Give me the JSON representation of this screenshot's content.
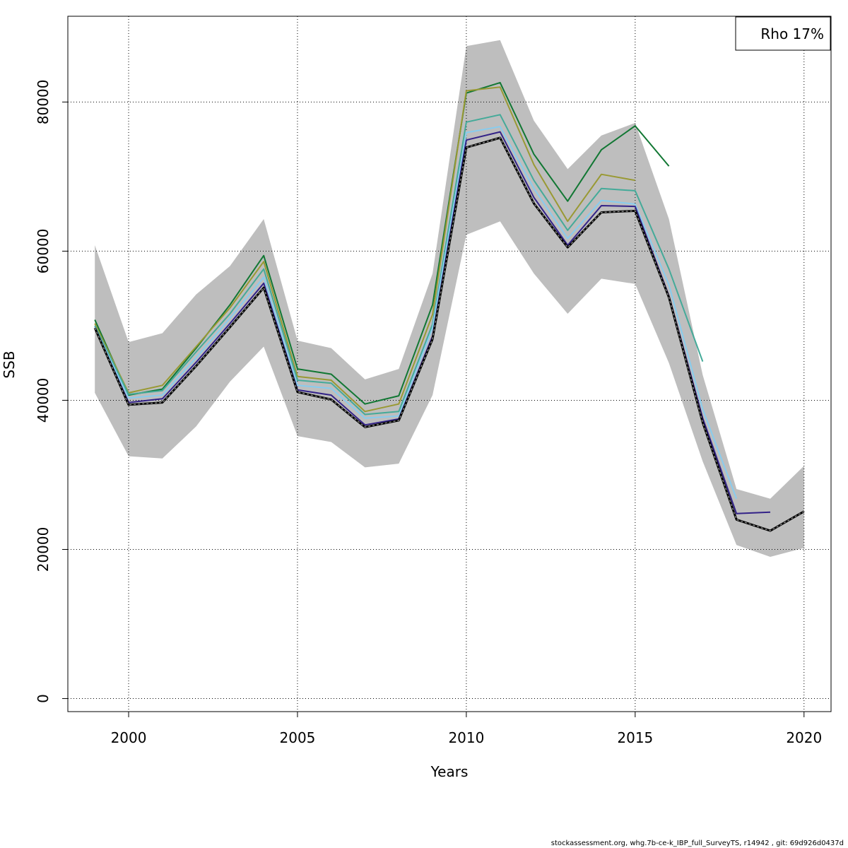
{
  "chart_data": {
    "type": "line",
    "title": "",
    "xlabel": "Years",
    "ylabel": "SSB",
    "xlim": [
      1998.2,
      2020.8
    ],
    "ylim": [
      -1750,
      91500
    ],
    "x_ticks": [
      2000,
      2005,
      2010,
      2015,
      2020
    ],
    "y_ticks": [
      0,
      20000,
      40000,
      60000,
      80000
    ],
    "x_tick_labels": [
      "2000",
      "2005",
      "2010",
      "2015",
      "2020"
    ],
    "y_tick_labels": [
      "0",
      "20000",
      "40000",
      "60000",
      "80000"
    ],
    "grid": true,
    "legend": {
      "position": "top-right",
      "text": "Rho 17%"
    },
    "band": {
      "color": "#bebebe",
      "years": [
        1999,
        2000,
        2001,
        2002,
        2003,
        2004,
        2005,
        2006,
        2007,
        2008,
        2009,
        2010,
        2011,
        2012,
        2013,
        2014,
        2015,
        2016,
        2017,
        2018,
        2019,
        2020
      ],
      "lower": [
        41000,
        32500,
        32200,
        36500,
        42500,
        47200,
        35200,
        34400,
        31000,
        31500,
        40700,
        62200,
        64000,
        57000,
        51600,
        56300,
        55600,
        45000,
        31800,
        20600,
        19000,
        20200
      ],
      "upper": [
        60800,
        47800,
        49000,
        54200,
        58000,
        64300,
        48000,
        47000,
        42800,
        44200,
        57000,
        87500,
        88300,
        77500,
        71000,
        75500,
        77200,
        64300,
        43400,
        28100,
        26800,
        31200
      ]
    },
    "series": [
      {
        "color": "#117733",
        "years": [
          1999,
          2000,
          2001,
          2002,
          2003,
          2004,
          2005,
          2006,
          2007,
          2008,
          2009,
          2010,
          2011,
          2012,
          2013,
          2014,
          2015,
          2016
        ],
        "values": [
          50800,
          40700,
          41500,
          47000,
          52800,
          59400,
          44200,
          43500,
          39500,
          40600,
          52800,
          81200,
          82600,
          73000,
          66700,
          73600,
          76800,
          71400
        ]
      },
      {
        "color": "#999933",
        "years": [
          1999,
          2000,
          2001,
          2002,
          2003,
          2004,
          2005,
          2006,
          2007,
          2008,
          2009,
          2010,
          2011,
          2012,
          2013,
          2014,
          2015
        ],
        "values": [
          50300,
          41000,
          42000,
          47200,
          52400,
          58600,
          43200,
          42700,
          38500,
          39500,
          51500,
          81500,
          82000,
          71600,
          64000,
          70300,
          69500
        ]
      },
      {
        "color": "#44AA99",
        "years": [
          1999,
          2000,
          2001,
          2002,
          2003,
          2004,
          2005,
          2006,
          2007,
          2008,
          2009,
          2010,
          2011,
          2012,
          2013,
          2014,
          2015,
          2016,
          2017
        ],
        "values": [
          50000,
          40800,
          41300,
          46500,
          51600,
          57600,
          42700,
          42300,
          38100,
          38500,
          50200,
          77300,
          78300,
          69500,
          62800,
          68400,
          68100,
          57600,
          45200
        ]
      },
      {
        "color": "#88CCEE",
        "years": [
          1999,
          2000,
          2001,
          2002,
          2003,
          2004,
          2005,
          2006,
          2007,
          2008,
          2009,
          2010,
          2011,
          2012,
          2013,
          2014,
          2015,
          2016,
          2017,
          2018
        ],
        "values": [
          49800,
          40300,
          40700,
          45700,
          51000,
          56500,
          42000,
          41600,
          37600,
          37900,
          49700,
          75900,
          76700,
          68400,
          61700,
          66800,
          66300,
          55500,
          38800,
          26800
        ]
      },
      {
        "color": "#332288",
        "years": [
          1999,
          2000,
          2001,
          2002,
          2003,
          2004,
          2005,
          2006,
          2007,
          2008,
          2009,
          2010,
          2011,
          2012,
          2013,
          2014,
          2015,
          2016,
          2017,
          2018,
          2019
        ],
        "values": [
          49700,
          39700,
          40200,
          45100,
          50300,
          55700,
          41400,
          40700,
          36700,
          37500,
          48600,
          74900,
          76000,
          67200,
          60800,
          66100,
          66000,
          54000,
          37600,
          24800,
          25000
        ]
      },
      {
        "color": "#000000",
        "dashed": true,
        "years": [
          1999,
          2000,
          2001,
          2002,
          2003,
          2004,
          2005,
          2006,
          2007,
          2008,
          2009,
          2010,
          2011,
          2012,
          2013,
          2014,
          2015,
          2016,
          2017,
          2018,
          2019,
          2020
        ],
        "values": [
          49700,
          39400,
          39700,
          44600,
          49800,
          55100,
          41100,
          40100,
          36400,
          37300,
          48200,
          73900,
          75200,
          66400,
          60500,
          65200,
          65400,
          53800,
          37000,
          24000,
          22500,
          25100
        ]
      }
    ]
  },
  "footer": "stockassessment.org, whg.7b-ce-k_IBP_full_SurveyTS, r14942 , git: 69d926d0437d"
}
